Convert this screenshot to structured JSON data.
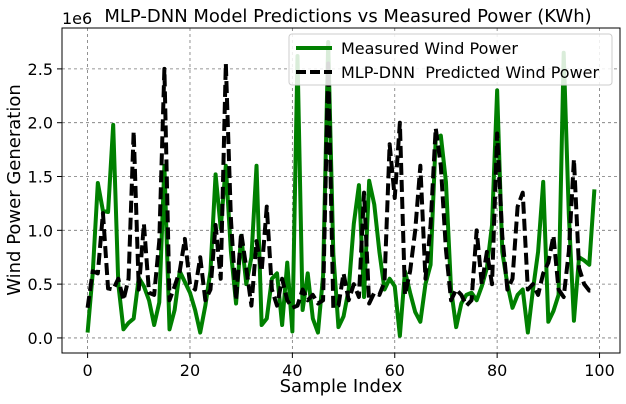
{
  "chart_data": {
    "type": "line",
    "title": "MLP-DNN Model Predictions vs Measured Power (KWh)",
    "xlabel": "Sample Index",
    "ylabel": "Wind Power Generation",
    "y_offset_label": "1e6",
    "xlim": [
      -5,
      104
    ],
    "ylim": [
      -0.14,
      2.88
    ],
    "x_ticks": [
      0,
      20,
      40,
      60,
      80,
      100
    ],
    "x_tick_labels": [
      "0",
      "20",
      "40",
      "60",
      "80",
      "100"
    ],
    "y_ticks": [
      0.0,
      0.5,
      1.0,
      1.5,
      2.0,
      2.5
    ],
    "y_tick_labels": [
      "0.0",
      "0.5",
      "1.0",
      "1.5",
      "2.0",
      "2.5"
    ],
    "grid": true,
    "legend_position": "top-right",
    "x": [
      0,
      1,
      2,
      3,
      4,
      5,
      6,
      7,
      8,
      9,
      10,
      11,
      12,
      13,
      14,
      15,
      16,
      17,
      18,
      19,
      20,
      21,
      22,
      23,
      24,
      25,
      26,
      27,
      28,
      29,
      30,
      31,
      32,
      33,
      34,
      35,
      36,
      37,
      38,
      39,
      40,
      41,
      42,
      43,
      44,
      45,
      46,
      47,
      48,
      49,
      50,
      51,
      52,
      53,
      54,
      55,
      56,
      57,
      58,
      59,
      60,
      61,
      62,
      63,
      64,
      65,
      66,
      67,
      68,
      69,
      70,
      71,
      72,
      73,
      74,
      75,
      76,
      77,
      78,
      79,
      80,
      81,
      82,
      83,
      84,
      85,
      86,
      87,
      88,
      89,
      90,
      91,
      92,
      93,
      94,
      95,
      96,
      97,
      98,
      99
    ],
    "series": [
      {
        "name": "Measured Wind Power",
        "color": "#008000",
        "style": "solid",
        "values": [
          0.05,
          0.6,
          1.44,
          1.18,
          1.17,
          1.98,
          0.5,
          0.08,
          0.14,
          0.18,
          0.56,
          0.48,
          0.35,
          0.12,
          0.33,
          1.6,
          0.08,
          0.26,
          0.62,
          0.52,
          0.42,
          0.26,
          0.05,
          0.3,
          0.62,
          1.52,
          1.02,
          1.6,
          0.8,
          0.32,
          0.95,
          0.5,
          0.75,
          1.6,
          0.12,
          0.18,
          0.55,
          0.6,
          0.12,
          0.7,
          0.06,
          2.62,
          0.26,
          0.6,
          0.18,
          0.05,
          0.58,
          2.75,
          0.78,
          0.1,
          0.2,
          0.45,
          1.06,
          1.42,
          0.38,
          1.46,
          1.24,
          0.8,
          0.45,
          0.55,
          0.48,
          0.02,
          0.62,
          0.42,
          0.24,
          0.15,
          0.5,
          0.68,
          1.85,
          1.88,
          1.45,
          0.45,
          0.1,
          0.32,
          0.4,
          0.42,
          0.35,
          0.48,
          0.65,
          1.05,
          2.3,
          0.8,
          0.5,
          0.28,
          0.4,
          0.45,
          0.05,
          0.45,
          0.8,
          1.45,
          0.15,
          0.25,
          0.4,
          2.65,
          1.15,
          0.16,
          0.75,
          0.72,
          0.68,
          1.38
        ]
      },
      {
        "name": "MLP-DNN  Predicted Wind Power",
        "color": "#000000",
        "style": "dashed",
        "values": [
          0.28,
          0.62,
          0.6,
          1.16,
          0.46,
          0.45,
          0.55,
          0.35,
          0.55,
          1.92,
          0.45,
          1.06,
          0.42,
          0.4,
          0.9,
          2.5,
          0.35,
          0.48,
          0.62,
          0.92,
          0.5,
          0.45,
          0.75,
          0.35,
          0.45,
          1.05,
          0.55,
          2.55,
          1.1,
          0.35,
          0.98,
          0.65,
          0.3,
          0.9,
          0.62,
          1.22,
          0.45,
          0.3,
          0.55,
          0.35,
          0.28,
          0.3,
          0.45,
          0.35,
          0.4,
          0.32,
          0.35,
          2.55,
          0.28,
          0.3,
          0.6,
          0.35,
          0.5,
          0.38,
          1.35,
          0.32,
          0.42,
          0.4,
          0.52,
          1.8,
          1.3,
          2.0,
          0.4,
          0.62,
          1.0,
          1.6,
          0.55,
          1.05,
          1.95,
          1.6,
          0.82,
          0.35,
          0.45,
          0.4,
          0.3,
          0.35,
          1.0,
          0.5,
          0.8,
          0.5,
          1.9,
          0.95,
          0.45,
          0.55,
          1.22,
          1.35,
          0.45,
          0.5,
          0.4,
          0.6,
          0.7,
          0.95,
          0.45,
          0.38,
          0.8,
          1.66,
          0.65,
          0.5,
          0.44,
          0.44
        ]
      }
    ]
  }
}
